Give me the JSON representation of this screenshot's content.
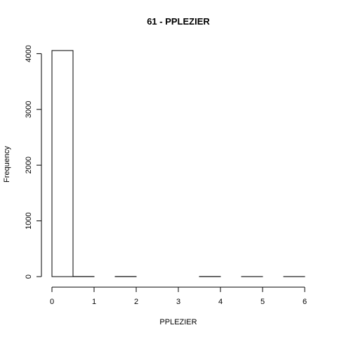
{
  "chart_data": {
    "type": "bar",
    "title": "61 - PPLEZIER",
    "xlabel": "PPLEZIER",
    "ylabel": "Frequency",
    "bin_edges": [
      0,
      0.5,
      1,
      1.5,
      2,
      2.5,
      3,
      3.5,
      4,
      4.5,
      5,
      5.5,
      6
    ],
    "values": [
      4056,
      2,
      0,
      2,
      0,
      0,
      0,
      2,
      0,
      1,
      0,
      1
    ],
    "xlim": [
      0,
      6
    ],
    "ylim": [
      0,
      4056
    ],
    "x_ticks": [
      0,
      1,
      2,
      3,
      4,
      5,
      6
    ],
    "y_ticks": [
      0,
      1000,
      2000,
      3000,
      4000
    ],
    "grid": false,
    "legend": "none"
  }
}
